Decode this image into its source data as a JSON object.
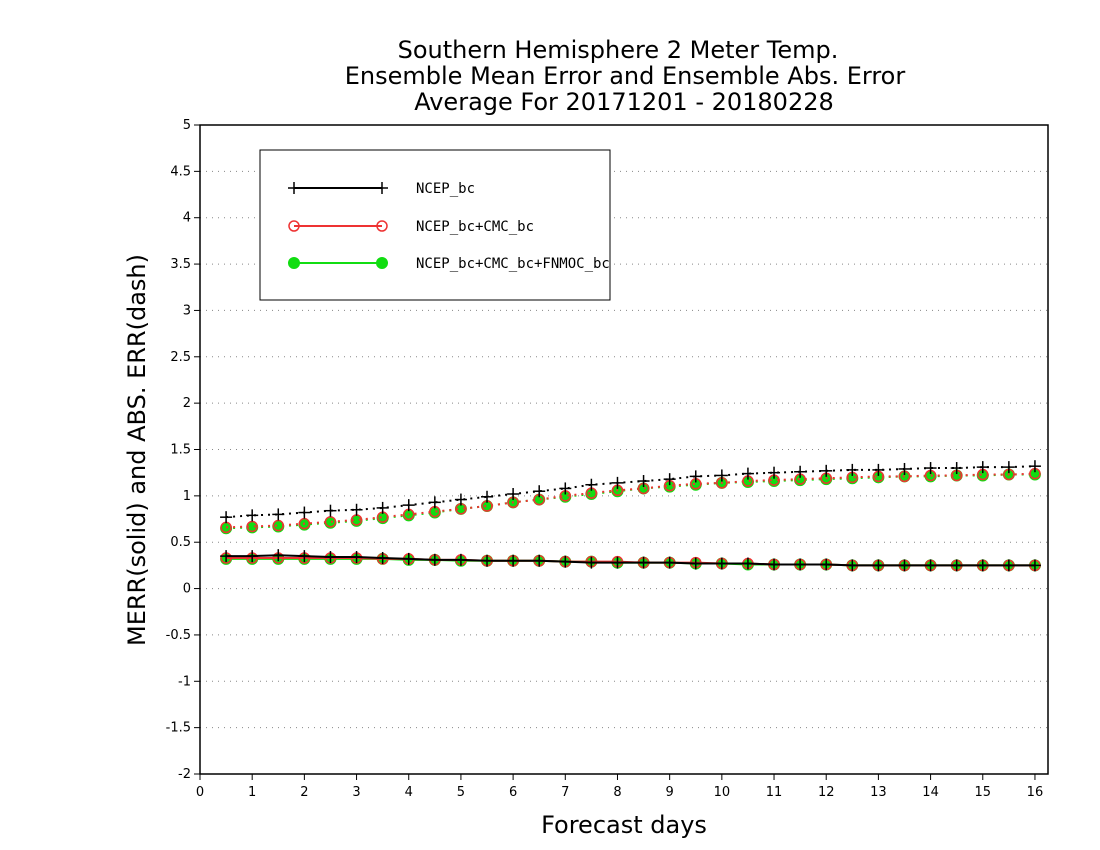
{
  "chart_data": {
    "type": "line",
    "title_lines": [
      "Southern Hemisphere 2 Meter Temp.",
      "Ensemble Mean Error and Ensemble Abs. Error",
      "Average For 20171201 - 20180228"
    ],
    "xlabel": "Forecast days",
    "ylabel": "MERR(solid) and ABS. ERR(dash)",
    "xlim": [
      0,
      16.25
    ],
    "ylim": [
      -2,
      5
    ],
    "xticks": [
      "0",
      "1",
      "2",
      "3",
      "4",
      "5",
      "6",
      "7",
      "8",
      "9",
      "10",
      "11",
      "12",
      "13",
      "14",
      "15",
      "16"
    ],
    "yticks": [
      "5",
      "4.5",
      "4",
      "3.5",
      "3",
      "2.5",
      "2",
      "1.5",
      "1",
      "0.5",
      "0",
      "-0.5",
      "-1",
      "-1.5",
      "-2"
    ],
    "grid": "horizontal dotted",
    "legend_position": "top-left",
    "x": [
      0.5,
      1.0,
      1.5,
      2.0,
      2.5,
      3.0,
      3.5,
      4.0,
      4.5,
      5.0,
      5.5,
      6.0,
      6.5,
      7.0,
      7.5,
      8.0,
      8.5,
      9.0,
      9.5,
      10.0,
      10.5,
      11.0,
      11.5,
      12.0,
      12.5,
      13.0,
      13.5,
      14.0,
      14.5,
      15.0,
      15.5,
      16.0
    ],
    "series": [
      {
        "name": "NCEP_bc",
        "color": "#000000",
        "marker": "plus",
        "merr": [
          0.35,
          0.35,
          0.36,
          0.35,
          0.34,
          0.34,
          0.33,
          0.32,
          0.31,
          0.31,
          0.3,
          0.3,
          0.3,
          0.29,
          0.28,
          0.28,
          0.28,
          0.28,
          0.27,
          0.27,
          0.27,
          0.26,
          0.26,
          0.26,
          0.25,
          0.25,
          0.25,
          0.25,
          0.25,
          0.25,
          0.25,
          0.25
        ],
        "abs_err": [
          0.77,
          0.79,
          0.8,
          0.82,
          0.84,
          0.85,
          0.87,
          0.9,
          0.93,
          0.96,
          0.99,
          1.02,
          1.05,
          1.08,
          1.12,
          1.14,
          1.16,
          1.18,
          1.21,
          1.22,
          1.24,
          1.25,
          1.26,
          1.27,
          1.28,
          1.28,
          1.29,
          1.3,
          1.3,
          1.31,
          1.31,
          1.32
        ]
      },
      {
        "name": "NCEP_bc+CMC_bc",
        "color": "#ee3333",
        "marker": "open-circle",
        "merr": [
          0.33,
          0.33,
          0.33,
          0.33,
          0.33,
          0.33,
          0.32,
          0.32,
          0.31,
          0.31,
          0.3,
          0.3,
          0.3,
          0.29,
          0.29,
          0.29,
          0.28,
          0.28,
          0.28,
          0.27,
          0.27,
          0.26,
          0.26,
          0.26,
          0.25,
          0.25,
          0.25,
          0.25,
          0.25,
          0.25,
          0.25,
          0.25
        ],
        "abs_err": [
          0.66,
          0.67,
          0.68,
          0.7,
          0.72,
          0.74,
          0.77,
          0.8,
          0.83,
          0.86,
          0.89,
          0.93,
          0.96,
          1.0,
          1.03,
          1.06,
          1.08,
          1.11,
          1.13,
          1.14,
          1.16,
          1.17,
          1.18,
          1.19,
          1.2,
          1.21,
          1.21,
          1.22,
          1.22,
          1.23,
          1.23,
          1.24
        ]
      },
      {
        "name": "NCEP_bc+CMC_bc+FNMOC_bc",
        "color": "#11dd11",
        "marker": "filled-circle",
        "merr": [
          0.32,
          0.32,
          0.32,
          0.32,
          0.32,
          0.32,
          0.32,
          0.31,
          0.31,
          0.3,
          0.3,
          0.3,
          0.3,
          0.29,
          0.29,
          0.28,
          0.28,
          0.28,
          0.27,
          0.27,
          0.26,
          0.26,
          0.26,
          0.26,
          0.25,
          0.25,
          0.25,
          0.25,
          0.25,
          0.25,
          0.25,
          0.25
        ],
        "abs_err": [
          0.65,
          0.66,
          0.67,
          0.69,
          0.71,
          0.73,
          0.76,
          0.79,
          0.82,
          0.86,
          0.89,
          0.93,
          0.96,
          0.99,
          1.02,
          1.05,
          1.08,
          1.1,
          1.12,
          1.14,
          1.15,
          1.16,
          1.17,
          1.18,
          1.19,
          1.2,
          1.21,
          1.21,
          1.22,
          1.22,
          1.23,
          1.23
        ]
      }
    ]
  }
}
